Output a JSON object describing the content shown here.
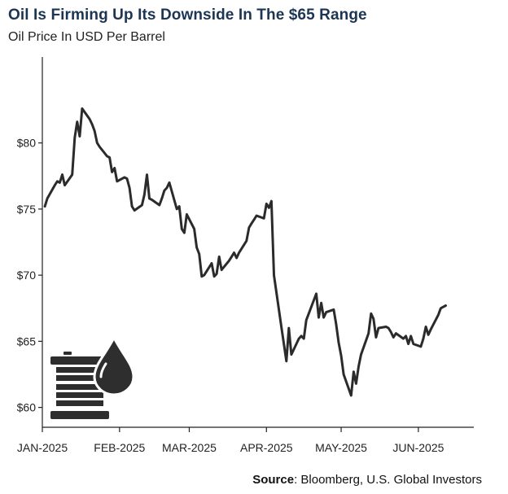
{
  "title": "Oil Is Firming Up Its Downside In The $65 Range",
  "subtitle": "Oil Price In USD Per Barrel",
  "source": {
    "label": "Source",
    "text": ": Bloomberg, U.S. Global Investors"
  },
  "icon": "oil-barrel-drop-icon",
  "colors": {
    "title": "#1b3553",
    "line": "#2b2b2b",
    "icon": "#2e2e2e"
  },
  "chart_data": {
    "type": "line",
    "title": "Oil Is Firming Up Its Downside In The $65 Range",
    "ylabel": "",
    "xlabel": "",
    "ylim": [
      58.5,
      86.5
    ],
    "yticks": [
      60,
      65,
      70,
      75,
      80
    ],
    "ytick_labels": [
      "$60",
      "$65",
      "$70",
      "$75",
      "$80"
    ],
    "xticks": [
      "JAN-2025",
      "FEB-2025",
      "MAR-2025",
      "APR-2025",
      "MAY-2025",
      "JUN-2025"
    ],
    "grid": false,
    "series": [
      {
        "x": [
          "2025-01-02",
          "2025-01-03",
          "2025-01-06",
          "2025-01-07",
          "2025-01-08",
          "2025-01-09",
          "2025-01-10",
          "2025-01-13",
          "2025-01-14",
          "2025-01-15",
          "2025-01-16",
          "2025-01-17",
          "2025-01-20",
          "2025-01-21",
          "2025-01-22",
          "2025-01-23",
          "2025-01-24",
          "2025-01-27",
          "2025-01-28",
          "2025-01-29",
          "2025-01-30",
          "2025-01-31",
          "2025-02-03",
          "2025-02-04",
          "2025-02-05",
          "2025-02-06",
          "2025-02-07",
          "2025-02-10",
          "2025-02-11",
          "2025-02-12",
          "2025-02-13",
          "2025-02-14",
          "2025-02-17",
          "2025-02-18",
          "2025-02-19",
          "2025-02-20",
          "2025-02-21",
          "2025-02-24",
          "2025-02-25",
          "2025-02-26",
          "2025-02-27",
          "2025-02-28",
          "2025-03-03",
          "2025-03-04",
          "2025-03-05",
          "2025-03-06",
          "2025-03-07",
          "2025-03-10",
          "2025-03-11",
          "2025-03-12",
          "2025-03-13",
          "2025-03-14",
          "2025-03-17",
          "2025-03-18",
          "2025-03-19",
          "2025-03-20",
          "2025-03-21",
          "2025-03-24",
          "2025-03-25",
          "2025-03-26",
          "2025-03-27",
          "2025-03-28",
          "2025-03-31",
          "2025-04-01",
          "2025-04-02",
          "2025-04-03",
          "2025-04-04",
          "2025-04-07",
          "2025-04-08",
          "2025-04-09",
          "2025-04-10",
          "2025-04-11",
          "2025-04-14",
          "2025-04-15",
          "2025-04-16",
          "2025-04-17",
          "2025-04-21",
          "2025-04-22",
          "2025-04-23",
          "2025-04-24",
          "2025-04-25",
          "2025-04-28",
          "2025-04-29",
          "2025-04-30",
          "2025-05-01",
          "2025-05-02",
          "2025-05-05",
          "2025-05-06",
          "2025-05-07",
          "2025-05-08",
          "2025-05-09",
          "2025-05-12",
          "2025-05-13",
          "2025-05-14",
          "2025-05-15",
          "2025-05-16",
          "2025-05-19",
          "2025-05-20",
          "2025-05-21",
          "2025-05-22",
          "2025-05-23",
          "2025-05-26",
          "2025-05-27",
          "2025-05-28",
          "2025-05-29",
          "2025-05-30",
          "2025-06-02",
          "2025-06-03",
          "2025-06-04",
          "2025-06-05",
          "2025-06-06",
          "2025-06-09",
          "2025-06-10",
          "2025-06-11",
          "2025-06-12"
        ],
        "values": [
          75.2,
          75.8,
          76.8,
          77.1,
          77.0,
          77.6,
          76.8,
          77.6,
          80.4,
          81.6,
          80.5,
          82.6,
          81.8,
          81.4,
          80.9,
          80.0,
          79.7,
          79.0,
          78.9,
          77.8,
          78.1,
          77.1,
          77.4,
          77.3,
          76.6,
          75.2,
          74.9,
          75.3,
          76.1,
          77.6,
          75.8,
          75.7,
          75.3,
          75.8,
          76.4,
          76.6,
          77.0,
          75.0,
          75.2,
          73.5,
          73.2,
          74.6,
          73.5,
          72.1,
          71.6,
          69.9,
          70.0,
          70.9,
          69.9,
          70.1,
          71.4,
          70.4,
          71.1,
          71.4,
          71.7,
          71.3,
          71.7,
          72.6,
          73.6,
          73.9,
          74.2,
          74.5,
          74.3,
          75.4,
          75.1,
          75.6,
          70.0,
          66.1,
          64.8,
          63.5,
          66.0,
          64.0,
          65.2,
          65.4,
          65.2,
          66.6,
          68.6,
          66.8,
          67.9,
          66.8,
          67.2,
          67.4,
          66.3,
          64.9,
          63.9,
          62.5,
          60.9,
          62.7,
          61.8,
          63.1,
          64.0,
          65.6,
          67.1,
          66.7,
          65.3,
          66.0,
          66.1,
          66.0,
          65.7,
          65.3,
          65.6,
          65.2,
          65.4,
          64.8,
          65.4,
          64.8,
          64.6,
          65.2,
          66.1,
          65.5,
          65.9,
          67.0,
          67.5,
          67.6,
          67.7
        ]
      }
    ]
  }
}
